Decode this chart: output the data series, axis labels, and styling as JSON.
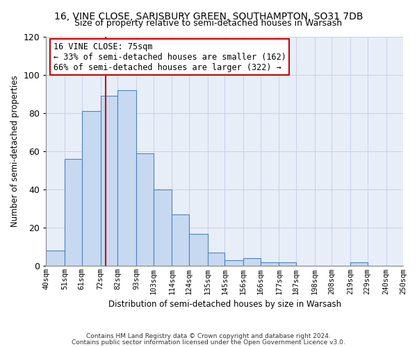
{
  "title": "16, VINE CLOSE, SARISBURY GREEN, SOUTHAMPTON, SO31 7DB",
  "subtitle": "Size of property relative to semi-detached houses in Warsash",
  "xlabel": "Distribution of semi-detached houses by size in Warsash",
  "ylabel": "Number of semi-detached properties",
  "bin_labels": [
    "40sqm",
    "51sqm",
    "61sqm",
    "72sqm",
    "82sqm",
    "93sqm",
    "103sqm",
    "114sqm",
    "124sqm",
    "135sqm",
    "145sqm",
    "156sqm",
    "166sqm",
    "177sqm",
    "187sqm",
    "198sqm",
    "208sqm",
    "219sqm",
    "229sqm",
    "240sqm",
    "250sqm"
  ],
  "bin_edges": [
    40,
    51,
    61,
    72,
    82,
    93,
    103,
    114,
    124,
    135,
    145,
    156,
    166,
    177,
    187,
    198,
    208,
    219,
    229,
    240,
    250
  ],
  "bar_heights": [
    8,
    56,
    81,
    89,
    92,
    59,
    40,
    27,
    17,
    7,
    3,
    4,
    2,
    2,
    0,
    0,
    0,
    2,
    0,
    0
  ],
  "bar_color": "#c6d9f1",
  "bar_edge_color": "#4f81bd",
  "property_line_x": 75,
  "property_line_color": "#cc0000",
  "ylim": [
    0,
    120
  ],
  "yticks": [
    0,
    20,
    40,
    60,
    80,
    100,
    120
  ],
  "annotation_title": "16 VINE CLOSE: 75sqm",
  "annotation_line1": "← 33% of semi-detached houses are smaller (162)",
  "annotation_line2": "66% of semi-detached houses are larger (322) →",
  "annotation_box_color": "#ffffff",
  "annotation_box_edge": "#cc0000",
  "footnote1": "Contains HM Land Registry data © Crown copyright and database right 2024.",
  "footnote2": "Contains public sector information licensed under the Open Government Licence v3.0.",
  "bg_color": "#e8eef8"
}
